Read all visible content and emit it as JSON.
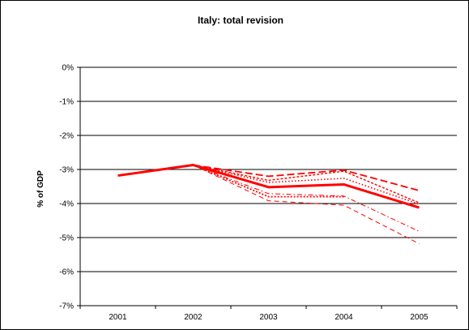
{
  "chart_data": {
    "type": "line",
    "title": "Italy: total revision",
    "xlabel": "",
    "ylabel": "% of GDP",
    "categories": [
      "2001",
      "2002",
      "2003",
      "2004",
      "2005"
    ],
    "ylim": [
      -7,
      0
    ],
    "yticks": [
      0,
      -1,
      -2,
      -3,
      -4,
      -5,
      -6,
      -7
    ],
    "ytick_labels": [
      "0%",
      "-1%",
      "-2%",
      "-3%",
      "-4%",
      "-5%",
      "-6%",
      "-7%"
    ],
    "grid": true,
    "legend": "none",
    "color": "#ff0000",
    "series": [
      {
        "style": "solid-thick",
        "values": [
          -3.18,
          -2.87,
          -3.52,
          -3.44,
          -4.12
        ]
      },
      {
        "style": "long-dash",
        "values": [
          null,
          -2.87,
          -3.2,
          -3.02,
          -3.62
        ]
      },
      {
        "style": "dense-dash",
        "values": [
          null,
          -2.87,
          -3.32,
          -3.05,
          -3.98
        ]
      },
      {
        "style": "dotted",
        "values": [
          null,
          -2.87,
          -3.38,
          -3.26,
          -4.02
        ]
      },
      {
        "style": "dash-dot",
        "values": [
          null,
          -2.87,
          -3.71,
          -3.78,
          -4.82
        ]
      },
      {
        "style": "dotted-fine",
        "values": [
          null,
          -2.87,
          -3.8,
          -3.8,
          null
        ]
      },
      {
        "style": "medium-dash",
        "values": [
          null,
          -2.87,
          -3.92,
          -4.05,
          -5.18
        ]
      }
    ]
  }
}
